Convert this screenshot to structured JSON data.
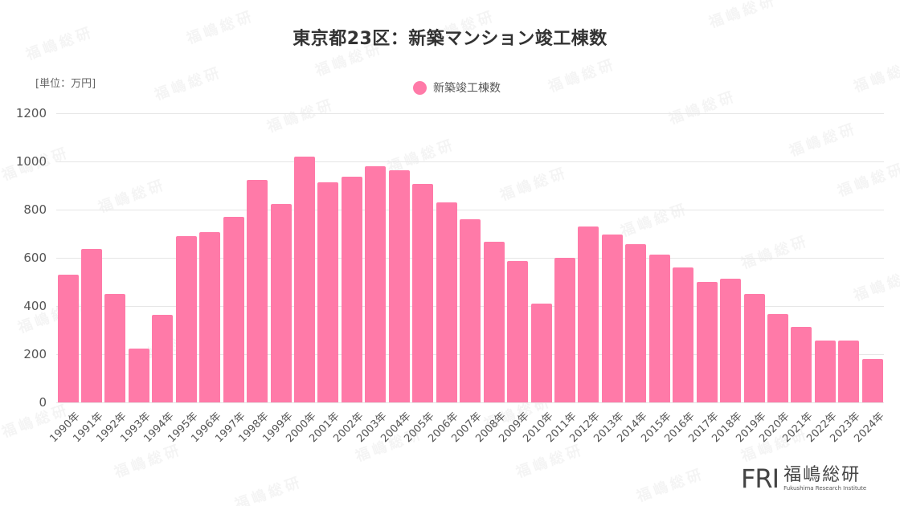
{
  "title": "東京都23区：新築マンション竣工棟数",
  "unit_label": "[単位：万円]",
  "legend": {
    "label": "新築竣工棟数",
    "color": "#ff7aa8"
  },
  "logo": {
    "mark": "FRI",
    "name_jp": "福嶋総研",
    "name_en": "Fukushima Research Institute"
  },
  "watermark_text": "福嶋総研",
  "y_ticks": [
    "0",
    "200",
    "400",
    "600",
    "800",
    "1000",
    "1200"
  ],
  "chart_data": {
    "type": "bar",
    "title": "東京都23区：新築マンション竣工棟数",
    "xlabel": "",
    "ylabel": "[単位：万円]",
    "ylim": [
      0,
      1200
    ],
    "grid": true,
    "legend_position": "top-center",
    "categories": [
      "1990年",
      "1991年",
      "1992年",
      "1993年",
      "1994年",
      "1995年",
      "1996年",
      "1997年",
      "1998年",
      "1999年",
      "2000年",
      "2001年",
      "2002年",
      "2003年",
      "2004年",
      "2005年",
      "2006年",
      "2007年",
      "2008年",
      "2009年",
      "2010年",
      "2011年",
      "2012年",
      "2013年",
      "2014年",
      "2015年",
      "2016年",
      "2017年",
      "2018年",
      "2019年",
      "2020年",
      "2021年",
      "2022年",
      "2023年",
      "2024年"
    ],
    "series": [
      {
        "name": "新築竣工棟数",
        "color": "#ff7aa8",
        "values": [
          530,
          636,
          449,
          222,
          362,
          689,
          708,
          771,
          924,
          823,
          1020,
          913,
          936,
          981,
          965,
          907,
          829,
          761,
          666,
          588,
          410,
          601,
          730,
          698,
          658,
          613,
          559,
          500,
          514,
          451,
          366,
          313,
          256,
          258,
          180
        ]
      }
    ]
  }
}
